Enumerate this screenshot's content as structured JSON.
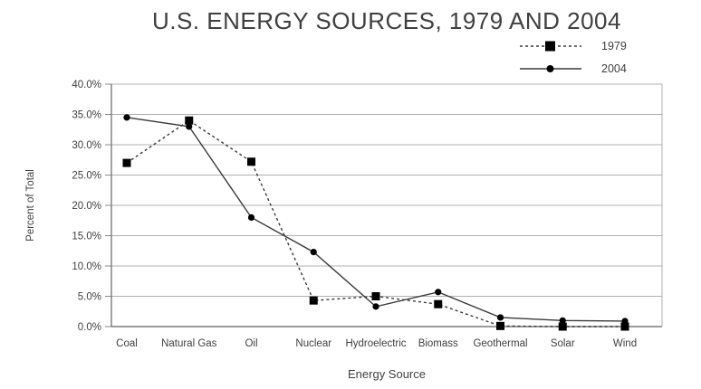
{
  "chart_data": {
    "type": "line",
    "title": "U.S. ENERGY SOURCES, 1979 AND 2004",
    "xlabel": "Energy Source",
    "ylabel": "Percent of Total",
    "ylim": [
      0,
      40
    ],
    "ytick_step": 5,
    "ytick_labels": [
      "0.0%",
      "5.0%",
      "10.0%",
      "15.0%",
      "20.0%",
      "25.0%",
      "30.0%",
      "35.0%",
      "40.0%"
    ],
    "categories": [
      "Coal",
      "Natural Gas",
      "Oil",
      "Nuclear",
      "Hydroelectric",
      "Biomass",
      "Geothermal",
      "Solar",
      "Wind"
    ],
    "series": [
      {
        "name": "1979",
        "line_style": "dashed",
        "marker": "square",
        "values": [
          27.0,
          34.0,
          27.2,
          4.3,
          5.0,
          3.7,
          0.1,
          0.0,
          0.0
        ]
      },
      {
        "name": "2004",
        "line_style": "solid",
        "marker": "circle",
        "values": [
          34.5,
          33.0,
          18.0,
          12.3,
          3.3,
          5.7,
          1.5,
          1.0,
          0.9
        ]
      }
    ],
    "grid": "horizontal",
    "legend_position": "top-right",
    "colors": {
      "line": "#3a3a3a",
      "marker": "#000000",
      "gridline": "#b0b0b0",
      "axis": "#8a8a8a",
      "text": "#3f3f3f"
    }
  }
}
